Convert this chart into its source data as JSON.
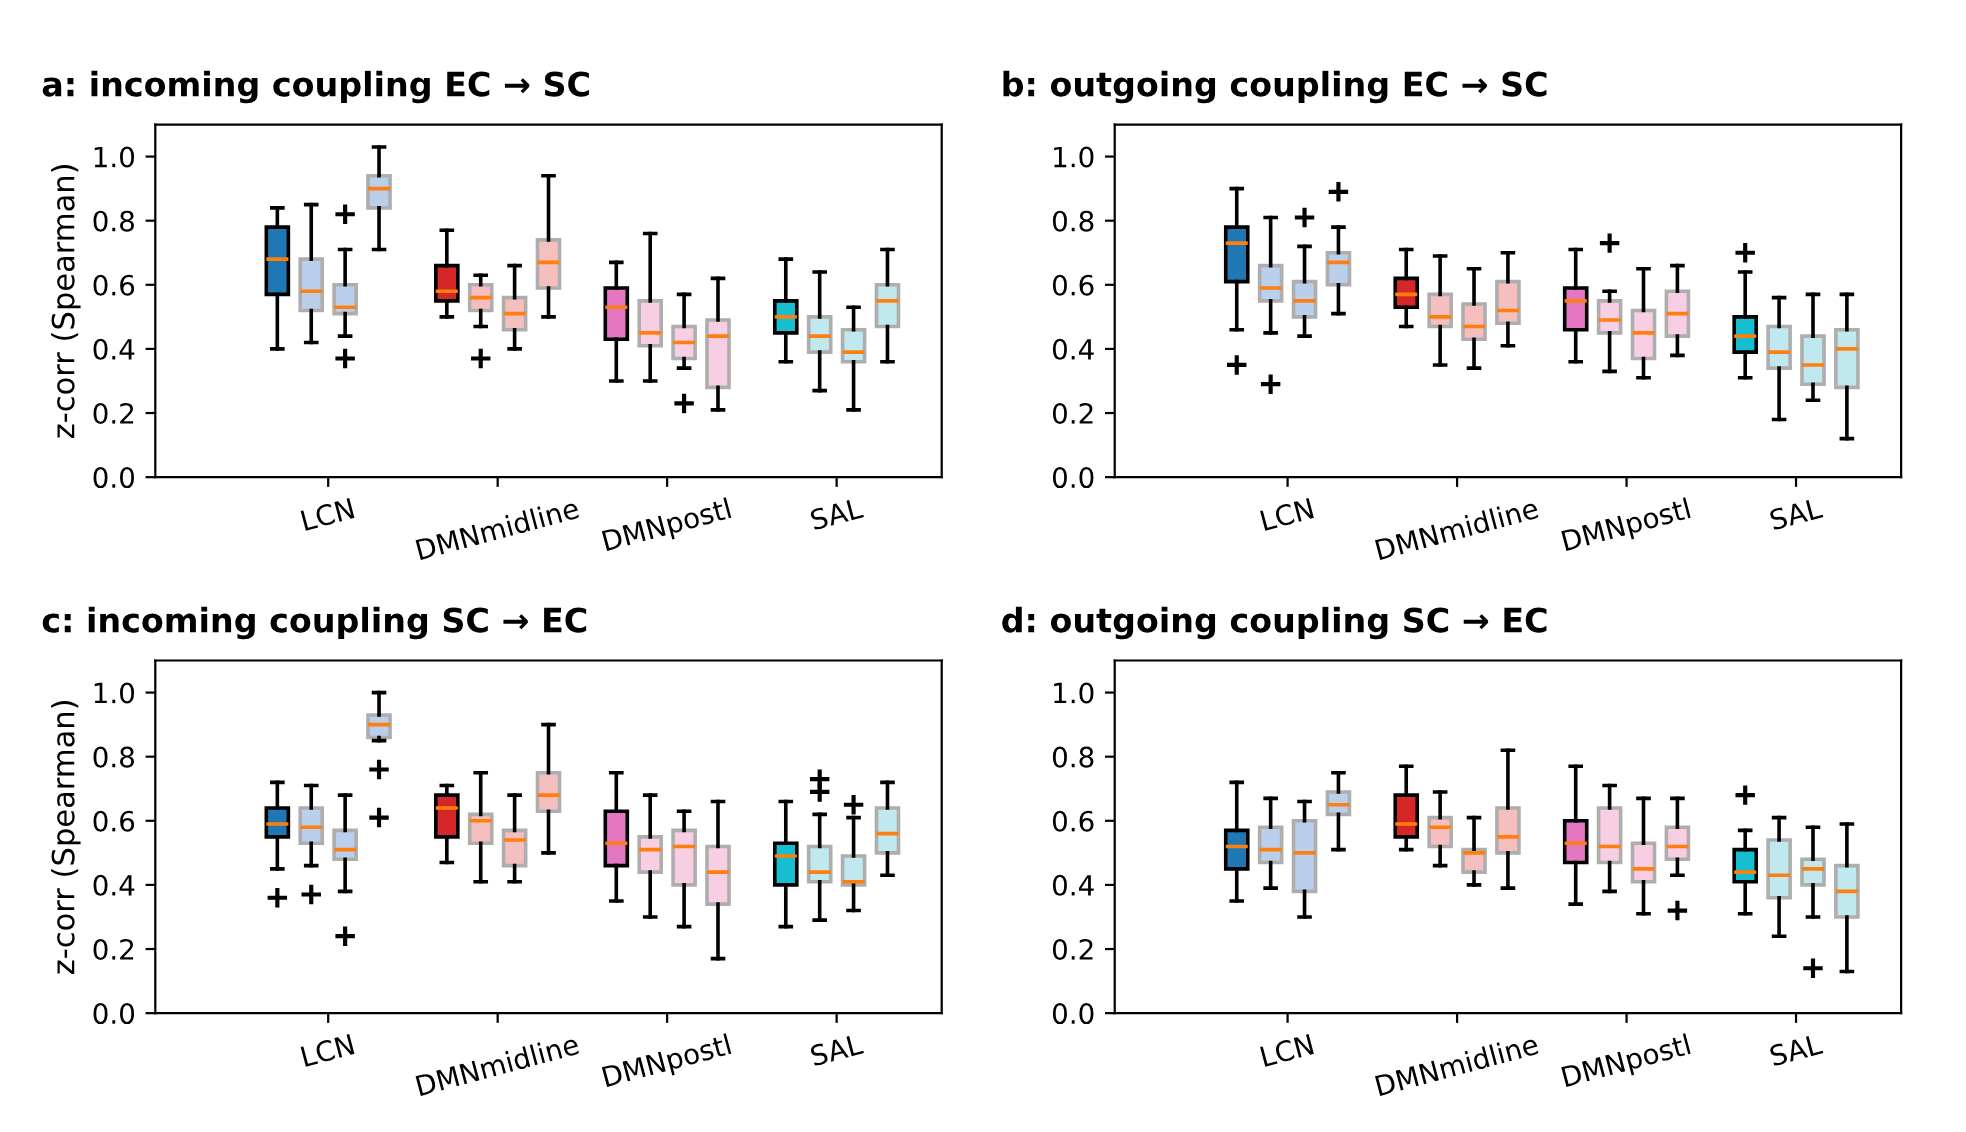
{
  "chart_data": [
    {
      "type": "box",
      "title": "a: incoming coupling EC → SC",
      "ylabel": "z-corr (Spearman)",
      "categories": [
        "LCN",
        "DMNmidline",
        "DMNpostl",
        "SAL"
      ],
      "ylim": [
        0,
        1.1
      ],
      "yticks": [
        {
          "value": 0,
          "label": "0.0"
        },
        {
          "value": 0.2,
          "label": "0.2"
        },
        {
          "value": 0.4,
          "label": "0.4"
        },
        {
          "value": 0.6,
          "label": "0.6"
        },
        {
          "value": 0.8,
          "label": "0.8"
        },
        {
          "value": 1,
          "label": "1.0"
        }
      ],
      "marker": "cross",
      "grid": false,
      "series": [
        {
          "type": "box",
          "colors": [
            "#1f77b4",
            "#d62728",
            "#e377c2",
            "#17becf"
          ],
          "boxes": [
            {
              "low": 0.4,
              "q1": 0.57,
              "median": 0.68,
              "q3": 0.78,
              "high": 0.84
            },
            {
              "low": 0.5,
              "q1": 0.55,
              "median": 0.58,
              "q3": 0.66,
              "high": 0.77
            },
            {
              "low": 0.3,
              "q1": 0.43,
              "median": 0.53,
              "q3": 0.59,
              "high": 0.67
            },
            {
              "low": 0.36,
              "q1": 0.45,
              "median": 0.5,
              "q3": 0.55,
              "high": 0.68
            }
          ]
        },
        {
          "type": "box",
          "colors": [
            "#aec7e8",
            "#f4b5b5",
            "#f7c6e0",
            "#b4e6ec"
          ],
          "boxes": [
            {
              "low": 0.42,
              "q1": 0.52,
              "median": 0.58,
              "q3": 0.68,
              "high": 0.85
            },
            {
              "low": 0.47,
              "q1": 0.52,
              "median": 0.56,
              "q3": 0.6,
              "high": 0.63,
              "outliers": [
                0.37
              ]
            },
            {
              "low": 0.3,
              "q1": 0.41,
              "median": 0.45,
              "q3": 0.55,
              "high": 0.76
            },
            {
              "low": 0.27,
              "q1": 0.39,
              "median": 0.44,
              "q3": 0.5,
              "high": 0.64
            }
          ]
        },
        {
          "type": "box",
          "colors": [
            "#aec7e8",
            "#f4b5b5",
            "#f7c6e0",
            "#b4e6ec"
          ],
          "boxes": [
            {
              "low": 0.44,
              "q1": 0.51,
              "median": 0.53,
              "q3": 0.6,
              "high": 0.71,
              "outliers": [
                0.82,
                0.37
              ]
            },
            {
              "low": 0.4,
              "q1": 0.46,
              "median": 0.51,
              "q3": 0.56,
              "high": 0.66
            },
            {
              "low": 0.34,
              "q1": 0.37,
              "median": 0.42,
              "q3": 0.47,
              "high": 0.57,
              "outliers": [
                0.23
              ]
            },
            {
              "low": 0.21,
              "q1": 0.36,
              "median": 0.39,
              "q3": 0.46,
              "high": 0.53
            }
          ]
        },
        {
          "type": "box",
          "colors": [
            "#aec7e8",
            "#f4b5b5",
            "#f7c6e0",
            "#b4e6ec"
          ],
          "boxes": [
            {
              "low": 0.71,
              "q1": 0.84,
              "median": 0.9,
              "q3": 0.94,
              "high": 1.03
            },
            {
              "low": 0.5,
              "q1": 0.59,
              "median": 0.67,
              "q3": 0.74,
              "high": 0.94
            },
            {
              "low": 0.21,
              "q1": 0.28,
              "median": 0.44,
              "q3": 0.49,
              "high": 0.62
            },
            {
              "low": 0.36,
              "q1": 0.47,
              "median": 0.55,
              "q3": 0.6,
              "high": 0.71
            }
          ]
        }
      ]
    },
    {
      "type": "box",
      "title": "b: outgoing coupling EC → SC",
      "categories": [
        "LCN",
        "DMNmidline",
        "DMNpostl",
        "SAL"
      ],
      "ylim": [
        0,
        1.1
      ],
      "yticks": [
        {
          "value": 0,
          "label": "0.0"
        },
        {
          "value": 0.2,
          "label": "0.2"
        },
        {
          "value": 0.4,
          "label": "0.4"
        },
        {
          "value": 0.6,
          "label": "0.6"
        },
        {
          "value": 0.8,
          "label": "0.8"
        },
        {
          "value": 1,
          "label": "1.0"
        }
      ],
      "marker": "cross",
      "grid": false,
      "series": [
        {
          "type": "box",
          "colors": [
            "#1f77b4",
            "#d62728",
            "#e377c2",
            "#17becf"
          ],
          "boxes": [
            {
              "low": 0.46,
              "q1": 0.61,
              "median": 0.73,
              "q3": 0.78,
              "high": 0.9,
              "outliers": [
                0.35
              ]
            },
            {
              "low": 0.47,
              "q1": 0.53,
              "median": 0.57,
              "q3": 0.62,
              "high": 0.71
            },
            {
              "low": 0.36,
              "q1": 0.46,
              "median": 0.55,
              "q3": 0.59,
              "high": 0.71
            },
            {
              "low": 0.31,
              "q1": 0.39,
              "median": 0.44,
              "q3": 0.5,
              "high": 0.64,
              "outliers": [
                0.7
              ]
            }
          ]
        },
        {
          "type": "box",
          "colors": [
            "#aec7e8",
            "#f4b5b5",
            "#f7c6e0",
            "#b4e6ec"
          ],
          "boxes": [
            {
              "low": 0.45,
              "q1": 0.55,
              "median": 0.59,
              "q3": 0.66,
              "high": 0.81,
              "outliers": [
                0.29
              ]
            },
            {
              "low": 0.35,
              "q1": 0.47,
              "median": 0.5,
              "q3": 0.57,
              "high": 0.69
            },
            {
              "low": 0.33,
              "q1": 0.45,
              "median": 0.49,
              "q3": 0.55,
              "high": 0.58,
              "outliers": [
                0.73
              ]
            },
            {
              "low": 0.18,
              "q1": 0.34,
              "median": 0.39,
              "q3": 0.47,
              "high": 0.56
            }
          ]
        },
        {
          "type": "box",
          "colors": [
            "#aec7e8",
            "#f4b5b5",
            "#f7c6e0",
            "#b4e6ec"
          ],
          "boxes": [
            {
              "low": 0.44,
              "q1": 0.5,
              "median": 0.55,
              "q3": 0.61,
              "high": 0.72,
              "outliers": [
                0.81
              ]
            },
            {
              "low": 0.34,
              "q1": 0.43,
              "median": 0.47,
              "q3": 0.54,
              "high": 0.65
            },
            {
              "low": 0.31,
              "q1": 0.37,
              "median": 0.45,
              "q3": 0.52,
              "high": 0.65
            },
            {
              "low": 0.24,
              "q1": 0.29,
              "median": 0.35,
              "q3": 0.44,
              "high": 0.57
            }
          ]
        },
        {
          "type": "box",
          "colors": [
            "#aec7e8",
            "#f4b5b5",
            "#f7c6e0",
            "#b4e6ec"
          ],
          "boxes": [
            {
              "low": 0.51,
              "q1": 0.6,
              "median": 0.67,
              "q3": 0.7,
              "high": 0.78,
              "outliers": [
                0.89
              ]
            },
            {
              "low": 0.41,
              "q1": 0.48,
              "median": 0.52,
              "q3": 0.61,
              "high": 0.7
            },
            {
              "low": 0.38,
              "q1": 0.44,
              "median": 0.51,
              "q3": 0.58,
              "high": 0.66
            },
            {
              "low": 0.12,
              "q1": 0.28,
              "median": 0.4,
              "q3": 0.46,
              "high": 0.57
            }
          ]
        }
      ]
    },
    {
      "type": "box",
      "title": "c: incoming coupling SC → EC",
      "ylabel": "z-corr (Spearman)",
      "categories": [
        "LCN",
        "DMNmidline",
        "DMNpostl",
        "SAL"
      ],
      "ylim": [
        0,
        1.1
      ],
      "yticks": [
        {
          "value": 0,
          "label": "0.0"
        },
        {
          "value": 0.2,
          "label": "0.2"
        },
        {
          "value": 0.4,
          "label": "0.4"
        },
        {
          "value": 0.6,
          "label": "0.6"
        },
        {
          "value": 0.8,
          "label": "0.8"
        },
        {
          "value": 1,
          "label": "1.0"
        }
      ],
      "marker": "cross",
      "grid": false,
      "series": [
        {
          "type": "box",
          "colors": [
            "#1f77b4",
            "#d62728",
            "#e377c2",
            "#17becf"
          ],
          "boxes": [
            {
              "low": 0.45,
              "q1": 0.55,
              "median": 0.59,
              "q3": 0.64,
              "high": 0.72,
              "outliers": [
                0.36
              ]
            },
            {
              "low": 0.47,
              "q1": 0.55,
              "median": 0.64,
              "q3": 0.68,
              "high": 0.71
            },
            {
              "low": 0.35,
              "q1": 0.46,
              "median": 0.53,
              "q3": 0.63,
              "high": 0.75
            },
            {
              "low": 0.27,
              "q1": 0.4,
              "median": 0.49,
              "q3": 0.53,
              "high": 0.66
            }
          ]
        },
        {
          "type": "box",
          "colors": [
            "#aec7e8",
            "#f4b5b5",
            "#f7c6e0",
            "#b4e6ec"
          ],
          "boxes": [
            {
              "low": 0.46,
              "q1": 0.53,
              "median": 0.58,
              "q3": 0.64,
              "high": 0.71,
              "outliers": [
                0.37
              ]
            },
            {
              "low": 0.41,
              "q1": 0.53,
              "median": 0.6,
              "q3": 0.62,
              "high": 0.75
            },
            {
              "low": 0.3,
              "q1": 0.44,
              "median": 0.51,
              "q3": 0.55,
              "high": 0.68
            },
            {
              "low": 0.29,
              "q1": 0.41,
              "median": 0.44,
              "q3": 0.52,
              "high": 0.62,
              "outliers": [
                0.73,
                0.69
              ]
            }
          ]
        },
        {
          "type": "box",
          "colors": [
            "#aec7e8",
            "#f4b5b5",
            "#f7c6e0",
            "#b4e6ec"
          ],
          "boxes": [
            {
              "low": 0.38,
              "q1": 0.48,
              "median": 0.51,
              "q3": 0.57,
              "high": 0.68,
              "outliers": [
                0.24
              ]
            },
            {
              "low": 0.41,
              "q1": 0.46,
              "median": 0.54,
              "q3": 0.57,
              "high": 0.68
            },
            {
              "low": 0.27,
              "q1": 0.4,
              "median": 0.52,
              "q3": 0.57,
              "high": 0.63
            },
            {
              "low": 0.32,
              "q1": 0.4,
              "median": 0.41,
              "q3": 0.49,
              "high": 0.61,
              "outliers": [
                0.65
              ]
            }
          ]
        },
        {
          "type": "box",
          "colors": [
            "#aec7e8",
            "#f4b5b5",
            "#f7c6e0",
            "#b4e6ec"
          ],
          "boxes": [
            {
              "low": 0.85,
              "q1": 0.86,
              "median": 0.9,
              "q3": 0.93,
              "high": 1.0,
              "outliers": [
                0.76,
                0.61
              ]
            },
            {
              "low": 0.5,
              "q1": 0.63,
              "median": 0.68,
              "q3": 0.75,
              "high": 0.9
            },
            {
              "low": 0.17,
              "q1": 0.34,
              "median": 0.44,
              "q3": 0.52,
              "high": 0.66
            },
            {
              "low": 0.43,
              "q1": 0.5,
              "median": 0.56,
              "q3": 0.64,
              "high": 0.72
            }
          ]
        }
      ]
    },
    {
      "type": "box",
      "title": "d: outgoing coupling SC → EC",
      "categories": [
        "LCN",
        "DMNmidline",
        "DMNpostl",
        "SAL"
      ],
      "ylim": [
        0,
        1.1
      ],
      "yticks": [
        {
          "value": 0,
          "label": "0.0"
        },
        {
          "value": 0.2,
          "label": "0.2"
        },
        {
          "value": 0.4,
          "label": "0.4"
        },
        {
          "value": 0.6,
          "label": "0.6"
        },
        {
          "value": 0.8,
          "label": "0.8"
        },
        {
          "value": 1,
          "label": "1.0"
        }
      ],
      "marker": "cross",
      "grid": false,
      "series": [
        {
          "type": "box",
          "colors": [
            "#1f77b4",
            "#d62728",
            "#e377c2",
            "#17becf"
          ],
          "boxes": [
            {
              "low": 0.35,
              "q1": 0.45,
              "median": 0.52,
              "q3": 0.57,
              "high": 0.72
            },
            {
              "low": 0.51,
              "q1": 0.55,
              "median": 0.59,
              "q3": 0.68,
              "high": 0.77
            },
            {
              "low": 0.34,
              "q1": 0.47,
              "median": 0.53,
              "q3": 0.6,
              "high": 0.77
            },
            {
              "low": 0.31,
              "q1": 0.41,
              "median": 0.44,
              "q3": 0.51,
              "high": 0.57,
              "outliers": [
                0.68
              ]
            }
          ]
        },
        {
          "type": "box",
          "colors": [
            "#aec7e8",
            "#f4b5b5",
            "#f7c6e0",
            "#b4e6ec"
          ],
          "boxes": [
            {
              "low": 0.39,
              "q1": 0.47,
              "median": 0.51,
              "q3": 0.58,
              "high": 0.67
            },
            {
              "low": 0.46,
              "q1": 0.52,
              "median": 0.58,
              "q3": 0.61,
              "high": 0.69
            },
            {
              "low": 0.38,
              "q1": 0.47,
              "median": 0.52,
              "q3": 0.64,
              "high": 0.71
            },
            {
              "low": 0.24,
              "q1": 0.36,
              "median": 0.43,
              "q3": 0.54,
              "high": 0.61
            }
          ]
        },
        {
          "type": "box",
          "colors": [
            "#aec7e8",
            "#f4b5b5",
            "#f7c6e0",
            "#b4e6ec"
          ],
          "boxes": [
            {
              "low": 0.3,
              "q1": 0.38,
              "median": 0.5,
              "q3": 0.6,
              "high": 0.66
            },
            {
              "low": 0.4,
              "q1": 0.44,
              "median": 0.5,
              "q3": 0.51,
              "high": 0.61
            },
            {
              "low": 0.31,
              "q1": 0.41,
              "median": 0.45,
              "q3": 0.53,
              "high": 0.67
            },
            {
              "low": 0.3,
              "q1": 0.4,
              "median": 0.45,
              "q3": 0.48,
              "high": 0.58,
              "outliers": [
                0.14
              ]
            }
          ]
        },
        {
          "type": "box",
          "colors": [
            "#aec7e8",
            "#f4b5b5",
            "#f7c6e0",
            "#b4e6ec"
          ],
          "boxes": [
            {
              "low": 0.51,
              "q1": 0.62,
              "median": 0.65,
              "q3": 0.69,
              "high": 0.75
            },
            {
              "low": 0.39,
              "q1": 0.5,
              "median": 0.55,
              "q3": 0.64,
              "high": 0.82
            },
            {
              "low": 0.43,
              "q1": 0.48,
              "median": 0.52,
              "q3": 0.58,
              "high": 0.67,
              "outliers": [
                0.32
              ]
            },
            {
              "low": 0.13,
              "q1": 0.3,
              "median": 0.38,
              "q3": 0.46,
              "high": 0.59
            }
          ]
        }
      ]
    }
  ]
}
